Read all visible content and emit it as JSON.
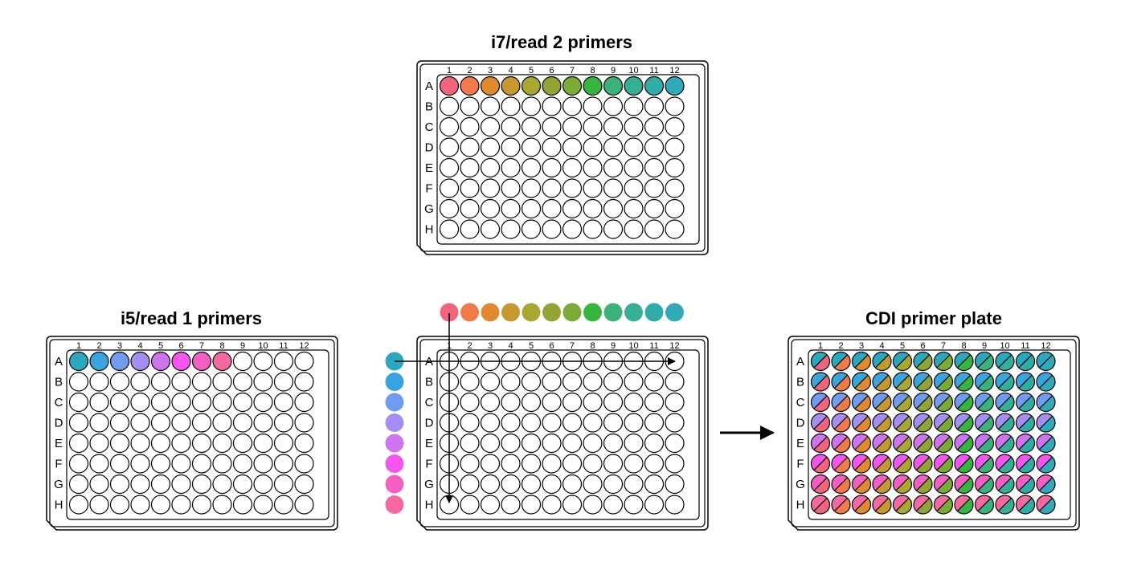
{
  "diagram": {
    "plates": {
      "i7": {
        "title": "i7/read 2 primers"
      },
      "i5": {
        "title": "i5/read 1 primers"
      },
      "mix": {
        "title": ""
      },
      "cdi": {
        "title": "CDI primer plate"
      }
    },
    "columns": [
      "1",
      "2",
      "3",
      "4",
      "5",
      "6",
      "7",
      "8",
      "9",
      "10",
      "11",
      "12"
    ],
    "rows": [
      "A",
      "B",
      "C",
      "D",
      "E",
      "F",
      "G",
      "H"
    ],
    "i7_colors": [
      "#f0657c",
      "#f07a4a",
      "#df8a2e",
      "#c49a30",
      "#aaa632",
      "#91a534",
      "#7aab36",
      "#36b540",
      "#3bb27b",
      "#35b096",
      "#31ada7",
      "#31a9b8"
    ],
    "i5_colors": [
      "#2da7be",
      "#3aa4df",
      "#709bef",
      "#a48ef0",
      "#cd74ee",
      "#f356ee",
      "#f460c2",
      "#f46aa0"
    ]
  }
}
